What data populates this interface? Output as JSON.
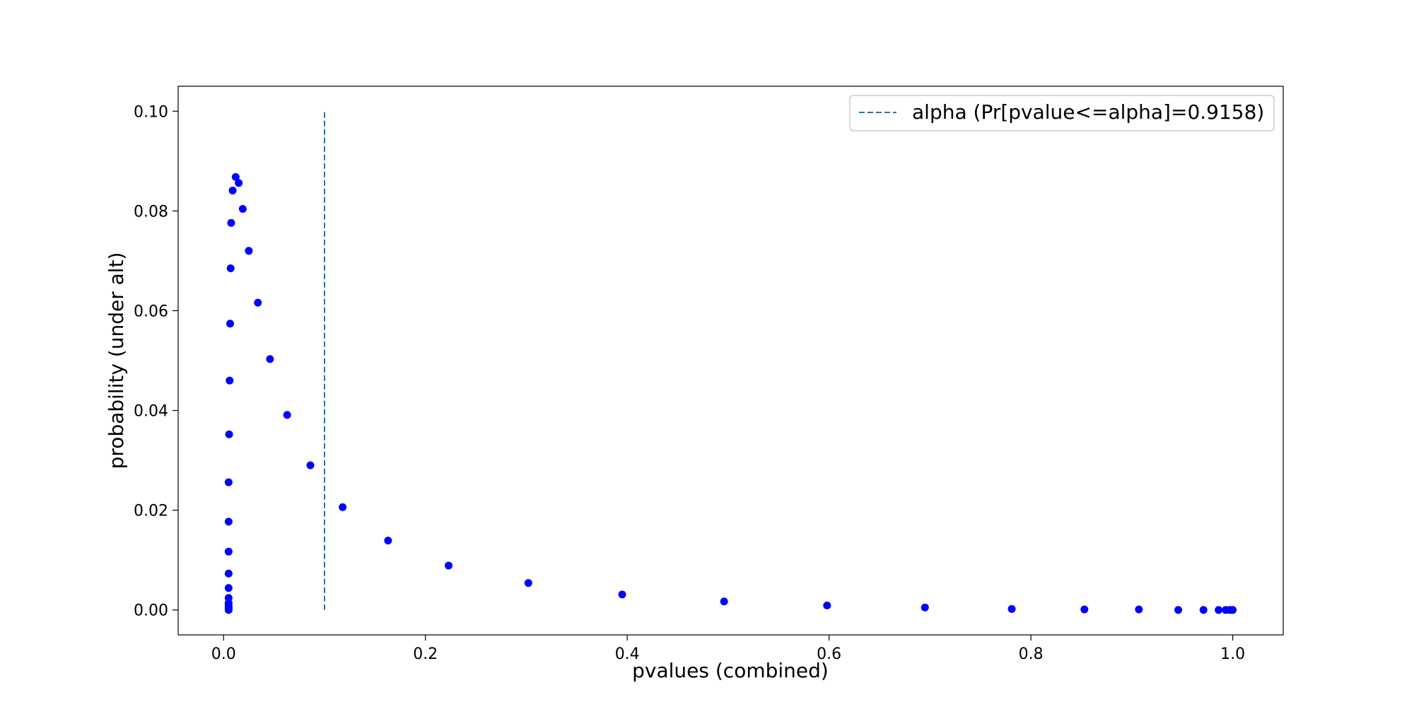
{
  "chart_data": {
    "type": "scatter",
    "title": "",
    "xlabel": "pvalues (combined)",
    "ylabel": "probability (under alt)",
    "xlim": [
      -0.045,
      1.05
    ],
    "ylim": [
      -0.005,
      0.105
    ],
    "xticks": [
      0.0,
      0.2,
      0.4,
      0.6,
      0.8,
      1.0
    ],
    "xtick_labels": [
      "0.0",
      "0.2",
      "0.4",
      "0.6",
      "0.8",
      "1.0"
    ],
    "yticks": [
      0.0,
      0.02,
      0.04,
      0.06,
      0.08,
      0.1
    ],
    "ytick_labels": [
      "0.00",
      "0.02",
      "0.04",
      "0.06",
      "0.08",
      "0.10"
    ],
    "grid": false,
    "legend": {
      "placement": "top-right",
      "entries": [
        "alpha (Pr[pvalue<=alpha]=0.9158)"
      ]
    },
    "alpha_line": {
      "x": 0.1,
      "y": [
        0.0,
        0.1
      ],
      "style": "dashed",
      "color": "#1f77b4"
    },
    "points_color": "#0000ff",
    "series": [
      {
        "x": [
          0.005,
          0.005,
          0.005,
          0.005,
          0.005,
          0.005,
          0.005,
          0.005,
          0.005,
          0.005,
          0.005,
          0.0055,
          0.006,
          0.0065,
          0.007,
          0.0075,
          0.009,
          0.012,
          0.015,
          0.019,
          0.025,
          0.034,
          0.046,
          0.063,
          0.086,
          0.118,
          0.163,
          0.223,
          0.302,
          0.395,
          0.496,
          0.598,
          0.695,
          0.781,
          0.853,
          0.907,
          0.946,
          0.971,
          0.986,
          0.993,
          0.997,
          0.999,
          1.0
        ],
        "y": [
          0.0,
          0.0002,
          0.0005,
          0.0009,
          0.0014,
          0.0024,
          0.0044,
          0.0073,
          0.0117,
          0.0177,
          0.0256,
          0.0352,
          0.046,
          0.0574,
          0.0685,
          0.0776,
          0.0841,
          0.0868,
          0.0856,
          0.0804,
          0.072,
          0.0616,
          0.0503,
          0.0391,
          0.029,
          0.0206,
          0.0139,
          0.0089,
          0.0054,
          0.0031,
          0.0017,
          0.0009,
          0.0005,
          0.0002,
          0.0001,
          0.0001,
          0.0,
          0.0,
          0.0,
          0.0,
          0.0,
          0.0,
          0.0
        ]
      }
    ]
  }
}
